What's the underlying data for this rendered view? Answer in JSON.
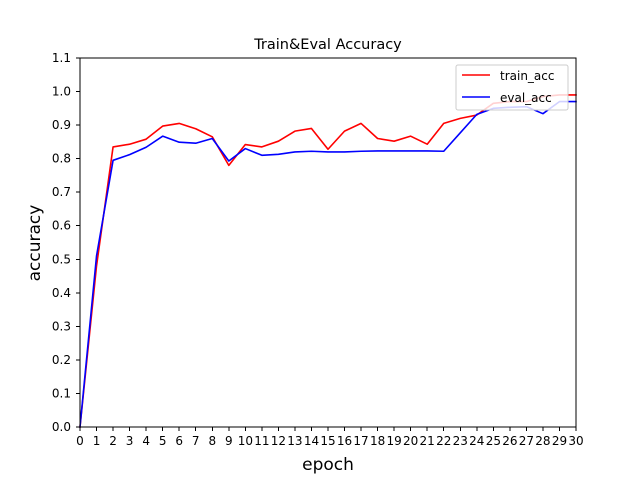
{
  "chart_data": {
    "type": "line",
    "title": "Train&Eval Accuracy",
    "xlabel": "epoch",
    "ylabel": "accuracy",
    "xlim": [
      0,
      30
    ],
    "ylim": [
      0.0,
      1.1
    ],
    "xticks": [
      "0",
      "1",
      "2",
      "3",
      "4",
      "5",
      "6",
      "7",
      "8",
      "9",
      "10",
      "11",
      "12",
      "13",
      "14",
      "15",
      "16",
      "17",
      "18",
      "19",
      "20",
      "21",
      "22",
      "23",
      "24",
      "25",
      "26",
      "27",
      "28",
      "29",
      "30"
    ],
    "yticks": [
      "0.0",
      "0.1",
      "0.2",
      "0.3",
      "0.4",
      "0.5",
      "0.6",
      "0.7",
      "0.8",
      "0.9",
      "1.0",
      "1.1"
    ],
    "grid": false,
    "legend_position": "top-right",
    "x": [
      0,
      1,
      2,
      3,
      4,
      5,
      6,
      7,
      8,
      9,
      10,
      11,
      12,
      13,
      14,
      15,
      16,
      17,
      18,
      19,
      20,
      21,
      22,
      23,
      24,
      25,
      26,
      27,
      28,
      29,
      30
    ],
    "series": [
      {
        "name": "train_acc",
        "color": "#ff0000",
        "values": [
          0.0,
          0.48,
          0.835,
          0.843,
          0.858,
          0.897,
          0.905,
          0.889,
          0.865,
          0.78,
          0.842,
          0.835,
          0.852,
          0.882,
          0.89,
          0.828,
          0.882,
          0.905,
          0.86,
          0.852,
          0.867,
          0.843,
          0.905,
          0.92,
          0.93,
          0.965,
          0.97,
          0.97,
          0.985,
          0.99,
          0.99
        ]
      },
      {
        "name": "eval_acc",
        "color": "#0000ff",
        "values": [
          0.0,
          0.51,
          0.795,
          0.812,
          0.834,
          0.867,
          0.849,
          0.846,
          0.86,
          0.793,
          0.83,
          0.81,
          0.813,
          0.82,
          0.822,
          0.82,
          0.82,
          0.822,
          0.823,
          0.823,
          0.823,
          0.823,
          0.822,
          0.877,
          0.932,
          0.95,
          0.953,
          0.955,
          0.934,
          0.97,
          0.97
        ]
      }
    ]
  }
}
